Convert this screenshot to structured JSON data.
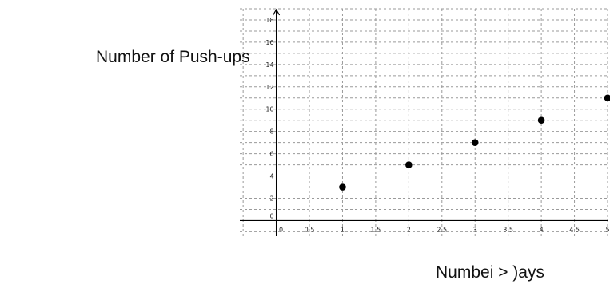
{
  "chart_data": {
    "type": "scatter",
    "title": "",
    "ylabel": "Number of Push-ups",
    "xlabel": "Numbei > )ays",
    "x_ticks": [
      "0",
      "0.5",
      "1",
      "1.5",
      "2",
      "2.5",
      "3",
      "3.5",
      "4",
      "4.5",
      "5"
    ],
    "y_ticks": [
      "0",
      "2",
      "4",
      "6",
      "8",
      "10",
      "12",
      "14",
      "16",
      "18"
    ],
    "xlim": [
      -0.55,
      5
    ],
    "ylim": [
      -1.4,
      19
    ],
    "grid": true,
    "points": [
      {
        "x": 1,
        "y": 3
      },
      {
        "x": 2,
        "y": 5
      },
      {
        "x": 3,
        "y": 7
      },
      {
        "x": 4,
        "y": 9
      },
      {
        "x": 5,
        "y": 11
      }
    ]
  },
  "colors": {
    "grid": "#9a9a9a",
    "axis": "#000000",
    "point": "#000000"
  }
}
